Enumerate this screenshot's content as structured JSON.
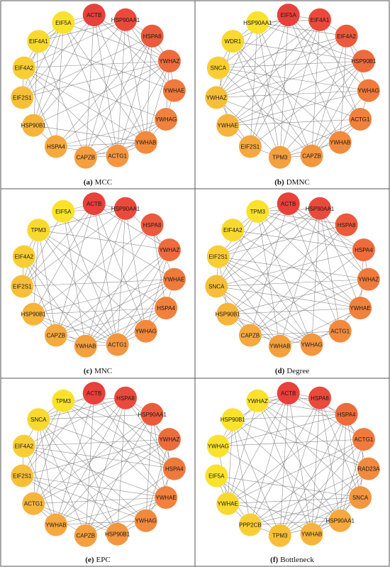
{
  "panels": [
    {
      "id": "a",
      "letter": "(a)",
      "method": "MCC",
      "nodes": [
        {
          "label": "ACTB",
          "color": "#e8403a"
        },
        {
          "label": "HSP90AA1",
          "color": "#ea4a3c"
        },
        {
          "label": "HSPA8",
          "color": "#eb5a3c"
        },
        {
          "label": "YWHAZ",
          "color": "#ee6b3b"
        },
        {
          "label": "YWHAE",
          "color": "#f07a3c"
        },
        {
          "label": "YWHAG",
          "color": "#f1813d"
        },
        {
          "label": "YWHAB",
          "color": "#f28a3d"
        },
        {
          "label": "ACTG1",
          "color": "#f39640"
        },
        {
          "label": "CAPZB",
          "color": "#f4a03f"
        },
        {
          "label": "HSPA4",
          "color": "#f5a93e"
        },
        {
          "label": "HSP90B1",
          "color": "#f6b43b"
        },
        {
          "label": "EIF2S1",
          "color": "#f7bf38"
        },
        {
          "label": "EIF4A2",
          "color": "#f8ce34"
        },
        {
          "label": "EIF4A1",
          "color": "#f9d92f"
        },
        {
          "label": "EIF5A",
          "color": "#fae22c"
        }
      ]
    },
    {
      "id": "b",
      "letter": "(b)",
      "method": "DMNC",
      "nodes": [
        {
          "label": "EIF5A",
          "color": "#e8403a"
        },
        {
          "label": "EIF4A1",
          "color": "#ea4a3c"
        },
        {
          "label": "EIF4A2",
          "color": "#eb5a3c"
        },
        {
          "label": "HSP90B1",
          "color": "#ee6b3b"
        },
        {
          "label": "YWHAG",
          "color": "#f07a3c"
        },
        {
          "label": "ACTG1",
          "color": "#f1813d"
        },
        {
          "label": "YWHAB",
          "color": "#f28a3d"
        },
        {
          "label": "CAPZB",
          "color": "#f39640"
        },
        {
          "label": "TPM3",
          "color": "#f4a03f"
        },
        {
          "label": "EIF2S1",
          "color": "#f5a93e"
        },
        {
          "label": "YWHAE",
          "color": "#f6b43b"
        },
        {
          "label": "YWHAZ",
          "color": "#f7bf38"
        },
        {
          "label": "SNCA",
          "color": "#f8ce34"
        },
        {
          "label": "WDR1",
          "color": "#f9d92f"
        },
        {
          "label": "HSP90AA1",
          "color": "#fae22c"
        }
      ]
    },
    {
      "id": "c",
      "letter": "(c)",
      "method": "MNC",
      "nodes": [
        {
          "label": "ACTB",
          "color": "#e8403a"
        },
        {
          "label": "HSP90AA1",
          "color": "#ea4a3c"
        },
        {
          "label": "HSPA8",
          "color": "#eb5a3c"
        },
        {
          "label": "YWHAZ",
          "color": "#ee6b3b"
        },
        {
          "label": "YWHAE",
          "color": "#f07a3c"
        },
        {
          "label": "HSPA4",
          "color": "#f1813d"
        },
        {
          "label": "YWHAG",
          "color": "#f28a3d"
        },
        {
          "label": "ACTG1",
          "color": "#f39640"
        },
        {
          "label": "YWHAB",
          "color": "#f4a03f"
        },
        {
          "label": "CAPZB",
          "color": "#f5a93e"
        },
        {
          "label": "HSP90B1",
          "color": "#f6b43b"
        },
        {
          "label": "EIF2S1",
          "color": "#f7bf38"
        },
        {
          "label": "EIF4A2",
          "color": "#f8ce34"
        },
        {
          "label": "TPM3",
          "color": "#f9d92f"
        },
        {
          "label": "EIF5A",
          "color": "#fae22c"
        }
      ]
    },
    {
      "id": "d",
      "letter": "(d)",
      "method": "Degree",
      "nodes": [
        {
          "label": "ACTB",
          "color": "#e8403a"
        },
        {
          "label": "HSP90AA1",
          "color": "#ea4a3c"
        },
        {
          "label": "HSPA8",
          "color": "#eb5a3c"
        },
        {
          "label": "HSPA4",
          "color": "#ee6b3b"
        },
        {
          "label": "YWHAZ",
          "color": "#f07a3c"
        },
        {
          "label": "YWHAE",
          "color": "#f1813d"
        },
        {
          "label": "ACTG1",
          "color": "#f28a3d"
        },
        {
          "label": "YWHAG",
          "color": "#f39640"
        },
        {
          "label": "YWHAB",
          "color": "#f4a03f"
        },
        {
          "label": "CAPZB",
          "color": "#f5a93e"
        },
        {
          "label": "HSP90B1",
          "color": "#f6b43b"
        },
        {
          "label": "SNCA",
          "color": "#f7bf38"
        },
        {
          "label": "EIF2S1",
          "color": "#f8ce34"
        },
        {
          "label": "EIF4A2",
          "color": "#f9d92f"
        },
        {
          "label": "TPM3",
          "color": "#fae22c"
        }
      ]
    },
    {
      "id": "e",
      "letter": "(e)",
      "method": "EPC",
      "nodes": [
        {
          "label": "ACTB",
          "color": "#e8403a"
        },
        {
          "label": "HSPA8",
          "color": "#ea4a3c"
        },
        {
          "label": "HSP90AA1",
          "color": "#eb5a3c"
        },
        {
          "label": "YWHAZ",
          "color": "#ee6b3b"
        },
        {
          "label": "HSPA4",
          "color": "#f07a3c"
        },
        {
          "label": "YWHAE",
          "color": "#f1813d"
        },
        {
          "label": "YWHAG",
          "color": "#f28a3d"
        },
        {
          "label": "HSP90B1",
          "color": "#f39640"
        },
        {
          "label": "CAPZB",
          "color": "#f4a03f"
        },
        {
          "label": "YWHAB",
          "color": "#f5a93e"
        },
        {
          "label": "ACTG1",
          "color": "#f6b43b"
        },
        {
          "label": "EIF2S1",
          "color": "#f7bf38"
        },
        {
          "label": "EIF4A2",
          "color": "#f8ce34"
        },
        {
          "label": "SNCA",
          "color": "#f9d92f"
        },
        {
          "label": "TPM3",
          "color": "#fae22c"
        }
      ]
    },
    {
      "id": "f",
      "letter": "(f)",
      "method": "Bottleneck",
      "nodes": [
        {
          "label": "ACTB",
          "color": "#e8403a"
        },
        {
          "label": "HSPA8",
          "color": "#ea4a3c"
        },
        {
          "label": "HSPA4",
          "color": "#ee6b3b"
        },
        {
          "label": "ACTG1",
          "color": "#f07a3c"
        },
        {
          "label": "RAD23A",
          "color": "#f28a3d"
        },
        {
          "label": "SNCA",
          "color": "#f39640"
        },
        {
          "label": "HSP90AA1",
          "color": "#f5a93e"
        },
        {
          "label": "YWHAB",
          "color": "#f6b43b"
        },
        {
          "label": "TPM3",
          "color": "#f7bf38"
        },
        {
          "label": "PPP2CB",
          "color": "#f8ce34"
        },
        {
          "label": "YWHAE",
          "color": "#f9d92f"
        },
        {
          "label": "EIF5A",
          "color": "#fae22c"
        },
        {
          "label": "YWHAG",
          "color": "#fae22c"
        },
        {
          "label": "HSP90B1",
          "color": "#fae22c"
        },
        {
          "label": "YWHAZ",
          "color": "#fae22c"
        }
      ]
    }
  ]
}
